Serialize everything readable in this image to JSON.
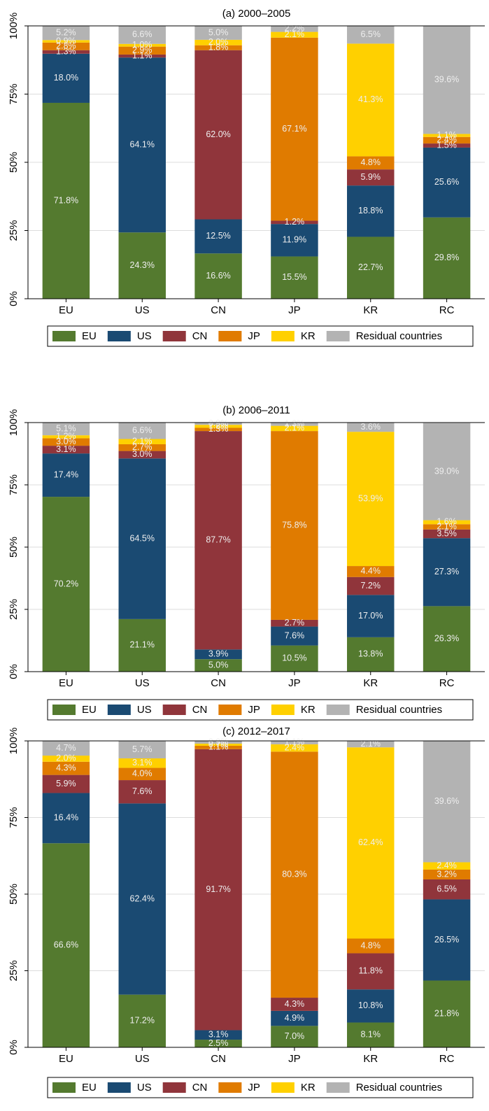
{
  "chart_data": [
    {
      "type": "stacked_bar",
      "title": "(a) 2000–2005",
      "categories": [
        "EU",
        "US",
        "CN",
        "JP",
        "KR",
        "RC"
      ],
      "ylim": [
        0,
        100
      ],
      "yticks": [
        {
          "value": 0,
          "label": "0%"
        },
        {
          "value": 25,
          "label": "25%"
        },
        {
          "value": 50,
          "label": "50%"
        },
        {
          "value": 75,
          "label": "75%"
        },
        {
          "value": 100,
          "label": "100%"
        }
      ],
      "grid": true,
      "legend": "bottom",
      "series": [
        {
          "name": "EU",
          "color": "#547a2f",
          "values": [
            71.8,
            24.3,
            16.6,
            15.5,
            22.7,
            29.8
          ],
          "value_labels": [
            "71.8%",
            "24.3%",
            "16.6%",
            "15.5%",
            "22.7%",
            "29.8%"
          ]
        },
        {
          "name": "US",
          "color": "#1a4a72",
          "values": [
            18.0,
            64.1,
            12.5,
            11.9,
            18.8,
            25.6
          ],
          "value_labels": [
            "18.0%",
            "64.1%",
            "12.5%",
            "11.9%",
            "18.8%",
            "25.6%"
          ]
        },
        {
          "name": "CN",
          "color": "#90353b",
          "values": [
            1.3,
            1.1,
            62.0,
            1.2,
            5.9,
            1.5
          ],
          "value_labels": [
            "1.3%",
            "1.1%",
            "62.0%",
            "1.2%",
            "5.9%",
            "1.5%"
          ]
        },
        {
          "name": "JP",
          "color": "#e07b00",
          "values": [
            2.8,
            2.9,
            1.8,
            67.1,
            4.8,
            2.4
          ],
          "value_labels": [
            "2.8%",
            "2.9%",
            "1.8%",
            "67.1%",
            "4.8%",
            "2.4%"
          ]
        },
        {
          "name": "KR",
          "color": "#ffd000",
          "values": [
            0.9,
            1.0,
            2.0,
            2.1,
            41.3,
            1.1
          ],
          "value_labels": [
            "0.9%",
            "1.0%",
            "2.0%",
            "2.1%",
            "41.3%",
            "1.1%"
          ]
        },
        {
          "name": "Residual countries",
          "color": "#b3b3b3",
          "values": [
            5.2,
            6.6,
            5.0,
            2.2,
            6.5,
            39.6
          ],
          "value_labels": [
            "5.2%",
            "6.6%",
            "5.0%",
            "2.2%",
            "6.5%",
            "39.6%"
          ]
        }
      ]
    },
    {
      "type": "stacked_bar",
      "title": "(b) 2006–2011",
      "categories": [
        "EU",
        "US",
        "CN",
        "JP",
        "KR",
        "RC"
      ],
      "ylim": [
        0,
        100
      ],
      "yticks": [
        {
          "value": 0,
          "label": "0%"
        },
        {
          "value": 25,
          "label": "25%"
        },
        {
          "value": 50,
          "label": "50%"
        },
        {
          "value": 75,
          "label": "75%"
        },
        {
          "value": 100,
          "label": "100%"
        }
      ],
      "grid": true,
      "legend": "bottom",
      "series": [
        {
          "name": "EU",
          "color": "#547a2f",
          "values": [
            70.2,
            21.1,
            5.0,
            10.5,
            13.8,
            26.3
          ],
          "value_labels": [
            "70.2%",
            "21.1%",
            "5.0%",
            "10.5%",
            "13.8%",
            "26.3%"
          ]
        },
        {
          "name": "US",
          "color": "#1a4a72",
          "values": [
            17.4,
            64.5,
            3.9,
            7.6,
            17.0,
            27.3
          ],
          "value_labels": [
            "17.4%",
            "64.5%",
            "3.9%",
            "7.6%",
            "17.0%",
            "27.3%"
          ]
        },
        {
          "name": "CN",
          "color": "#90353b",
          "values": [
            3.1,
            3.0,
            87.7,
            2.7,
            7.2,
            3.5
          ],
          "value_labels": [
            "3.1%",
            "3.0%",
            "87.7%",
            "2.7%",
            "7.2%",
            "3.5%"
          ]
        },
        {
          "name": "JP",
          "color": "#e07b00",
          "values": [
            3.0,
            2.7,
            1.3,
            75.8,
            4.4,
            2.1
          ],
          "value_labels": [
            "3.0%",
            "2.7%",
            "1.3%",
            "75.8%",
            "4.4%",
            "2.1%"
          ]
        },
        {
          "name": "KR",
          "color": "#ffd000",
          "values": [
            1.2,
            2.1,
            1.2,
            2.1,
            53.9,
            1.6
          ],
          "value_labels": [
            "1.2%",
            "2.1%",
            "1.2%",
            "2.1%",
            "53.9%",
            "1.6%"
          ]
        },
        {
          "name": "Residual countries",
          "color": "#b3b3b3",
          "values": [
            5.1,
            6.6,
            0.9,
            1.3,
            3.6,
            39.0
          ],
          "value_labels": [
            "5.1%",
            "6.6%",
            "0.9%",
            "1.3%",
            "3.6%",
            "39.0%"
          ]
        }
      ]
    },
    {
      "type": "stacked_bar",
      "title": "(c) 2012–2017",
      "categories": [
        "EU",
        "US",
        "CN",
        "JP",
        "KR",
        "RC"
      ],
      "ylim": [
        0,
        100
      ],
      "yticks": [
        {
          "value": 0,
          "label": "0%"
        },
        {
          "value": 25,
          "label": "25%"
        },
        {
          "value": 50,
          "label": "50%"
        },
        {
          "value": 75,
          "label": "75%"
        },
        {
          "value": 100,
          "label": "100%"
        }
      ],
      "grid": true,
      "legend": "bottom",
      "series": [
        {
          "name": "EU",
          "color": "#547a2f",
          "values": [
            66.6,
            17.2,
            2.5,
            7.0,
            8.1,
            21.8
          ],
          "value_labels": [
            "66.6%",
            "17.2%",
            "2.5%",
            "7.0%",
            "8.1%",
            "21.8%"
          ]
        },
        {
          "name": "US",
          "color": "#1a4a72",
          "values": [
            16.4,
            62.4,
            3.1,
            4.9,
            10.8,
            26.5
          ],
          "value_labels": [
            "16.4%",
            "62.4%",
            "3.1%",
            "4.9%",
            "10.8%",
            "26.5%"
          ]
        },
        {
          "name": "CN",
          "color": "#90353b",
          "values": [
            5.9,
            7.6,
            91.7,
            4.3,
            11.8,
            6.5
          ],
          "value_labels": [
            "5.9%",
            "7.6%",
            "91.7%",
            "4.3%",
            "11.8%",
            "6.5%"
          ]
        },
        {
          "name": "JP",
          "color": "#e07b00",
          "values": [
            4.3,
            4.0,
            1.1,
            80.3,
            4.8,
            3.2
          ],
          "value_labels": [
            "4.3%",
            "4.0%",
            "1.1%",
            "80.3%",
            "4.8%",
            "3.2%"
          ]
        },
        {
          "name": "KR",
          "color": "#ffd000",
          "values": [
            2.0,
            3.1,
            0.7,
            2.4,
            62.4,
            2.4
          ],
          "value_labels": [
            "2.0%",
            "3.1%",
            "0.7%",
            "2.4%",
            "62.4%",
            "2.4%"
          ]
        },
        {
          "name": "Residual countries",
          "color": "#b3b3b3",
          "values": [
            4.7,
            5.7,
            0.9,
            1.1,
            2.1,
            39.6
          ],
          "value_labels": [
            "4.7%",
            "5.7%",
            "0.9%",
            "1.1%",
            "2.1%",
            "39.6%"
          ]
        }
      ]
    }
  ]
}
